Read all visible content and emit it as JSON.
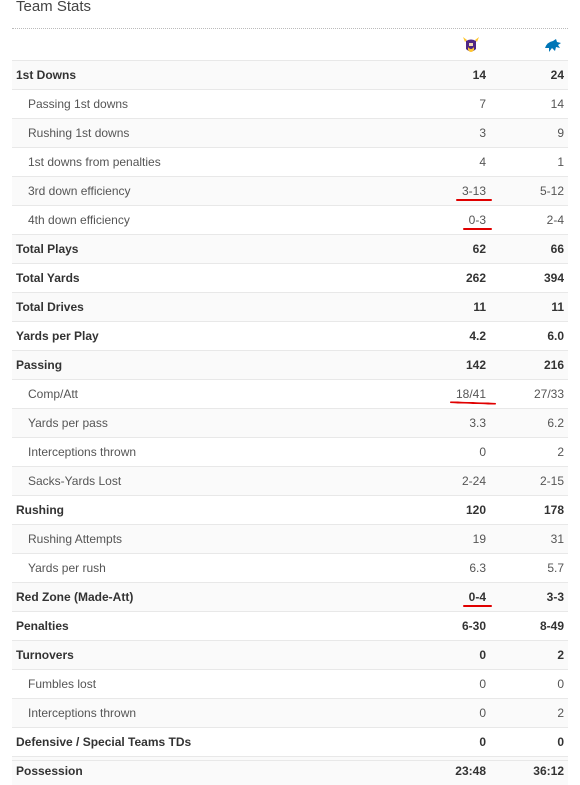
{
  "title": "Team Stats",
  "teams": [
    {
      "name_icon": "vikings-logo-icon",
      "color": "#4f2683",
      "accent": "#ffc62f"
    },
    {
      "name_icon": "lions-logo-icon",
      "color": "#0076b6"
    }
  ],
  "annotation_color": "#e00000",
  "rows": [
    {
      "label": "1st Downs",
      "v1": "14",
      "v2": "24",
      "type": "main"
    },
    {
      "label": "Passing 1st downs",
      "v1": "7",
      "v2": "14",
      "type": "sub"
    },
    {
      "label": "Rushing 1st downs",
      "v1": "3",
      "v2": "9",
      "type": "sub"
    },
    {
      "label": "1st downs from penalties",
      "v1": "4",
      "v2": "1",
      "type": "sub"
    },
    {
      "label": "3rd down efficiency",
      "v1": "3-13",
      "v2": "5-12",
      "type": "sub",
      "annotated": true
    },
    {
      "label": "4th down efficiency",
      "v1": "0-3",
      "v2": "2-4",
      "type": "sub",
      "annotated": true
    },
    {
      "label": "Total Plays",
      "v1": "62",
      "v2": "66",
      "type": "main"
    },
    {
      "label": "Total Yards",
      "v1": "262",
      "v2": "394",
      "type": "main"
    },
    {
      "label": "Total Drives",
      "v1": "11",
      "v2": "11",
      "type": "main"
    },
    {
      "label": "Yards per Play",
      "v1": "4.2",
      "v2": "6.0",
      "type": "main"
    },
    {
      "label": "Passing",
      "v1": "142",
      "v2": "216",
      "type": "main"
    },
    {
      "label": "Comp/Att",
      "v1": "18/41",
      "v2": "27/33",
      "type": "sub",
      "annotated": true
    },
    {
      "label": "Yards per pass",
      "v1": "3.3",
      "v2": "6.2",
      "type": "sub"
    },
    {
      "label": "Interceptions thrown",
      "v1": "0",
      "v2": "2",
      "type": "sub"
    },
    {
      "label": "Sacks-Yards Lost",
      "v1": "2-24",
      "v2": "2-15",
      "type": "sub"
    },
    {
      "label": "Rushing",
      "v1": "120",
      "v2": "178",
      "type": "main"
    },
    {
      "label": "Rushing Attempts",
      "v1": "19",
      "v2": "31",
      "type": "sub"
    },
    {
      "label": "Yards per rush",
      "v1": "6.3",
      "v2": "5.7",
      "type": "sub"
    },
    {
      "label": "Red Zone (Made-Att)",
      "v1": "0-4",
      "v2": "3-3",
      "type": "main",
      "annotated": true
    },
    {
      "label": "Penalties",
      "v1": "6-30",
      "v2": "8-49",
      "type": "main"
    },
    {
      "label": "Turnovers",
      "v1": "0",
      "v2": "2",
      "type": "main"
    },
    {
      "label": "Fumbles lost",
      "v1": "0",
      "v2": "0",
      "type": "sub"
    },
    {
      "label": "Interceptions thrown",
      "v1": "0",
      "v2": "2",
      "type": "sub"
    },
    {
      "label": "Defensive / Special Teams TDs",
      "v1": "0",
      "v2": "0",
      "type": "main"
    },
    {
      "label": "Possession",
      "v1": "23:48",
      "v2": "36:12",
      "type": "main"
    }
  ]
}
